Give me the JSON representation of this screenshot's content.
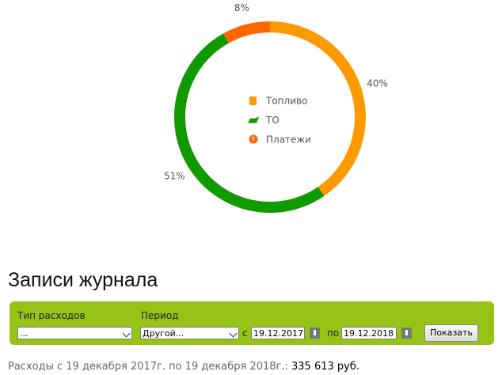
{
  "chart_data": {
    "type": "pie",
    "donut": true,
    "categories": [
      "Топливо",
      "ТО",
      "Платежи"
    ],
    "values": [
      40,
      51,
      8
    ],
    "value_labels": [
      "40%",
      "51%",
      "8%"
    ],
    "colors": [
      "#ff9900",
      "#119900",
      "#ff6600"
    ]
  },
  "journal": {
    "title": "Записи журнала",
    "filter": {
      "type_label": "Тип расходов",
      "type_value": "...",
      "period_label": "Период",
      "period_value": "Другой...",
      "from_label": "с",
      "from_date": "19.12.2017",
      "to_label": "по",
      "to_date": "19.12.2018",
      "button": "Показать"
    },
    "summary": {
      "text": "Расходы с 19 декабря 2017г. по 19 декабря 2018г.:",
      "total": "335 613 руб."
    }
  }
}
